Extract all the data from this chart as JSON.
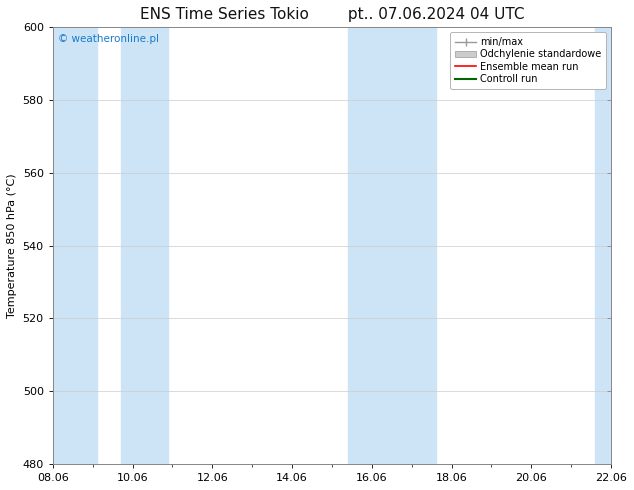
{
  "title": "ENS Time Series Tokio",
  "subtitle": "pt.. 07.06.2024 04 UTC",
  "ylabel": "Temperature 850 hPa (°C)",
  "watermark": "© weatheronline.pl",
  "watermark_color": "#1a7acc",
  "background_color": "#ffffff",
  "plot_bg_color": "#ffffff",
  "ylim": [
    480,
    600
  ],
  "yticks": [
    480,
    500,
    520,
    540,
    560,
    580,
    600
  ],
  "xlim": [
    0,
    14
  ],
  "xtick_labels": [
    "08.06",
    "10.06",
    "12.06",
    "14.06",
    "16.06",
    "18.06",
    "20.06",
    "22.06"
  ],
  "xtick_positions": [
    0,
    2,
    4,
    6,
    8,
    10,
    12,
    14
  ],
  "shade_bands": [
    {
      "x_start": 0.0,
      "x_end": 1.4,
      "color": "#d6eaf8"
    },
    {
      "x_start": 1.6,
      "x_end": 2.8,
      "color": "#d6eaf8"
    },
    {
      "x_start": 7.6,
      "x_end": 8.4,
      "color": "#d6eaf8"
    },
    {
      "x_start": 8.6,
      "x_end": 9.4,
      "color": "#d6eaf8"
    },
    {
      "x_start": 13.6,
      "x_end": 14.0,
      "color": "#d6eaf8"
    }
  ],
  "legend_entries": [
    {
      "label": "min/max",
      "color": "#aaaaaa",
      "style": "line_with_caps"
    },
    {
      "label": "Odchylenie standardowe",
      "color": "#cccccc",
      "style": "bar"
    },
    {
      "label": "Ensemble mean run",
      "color": "#ff0000",
      "style": "line"
    },
    {
      "label": "Controll run",
      "color": "#008000",
      "style": "line"
    }
  ],
  "border_color": "#888888",
  "tick_color": "#000000",
  "grid_color": "#dddddd",
  "title_fontsize": 11,
  "axis_fontsize": 8,
  "tick_fontsize": 8,
  "legend_fontsize": 7
}
